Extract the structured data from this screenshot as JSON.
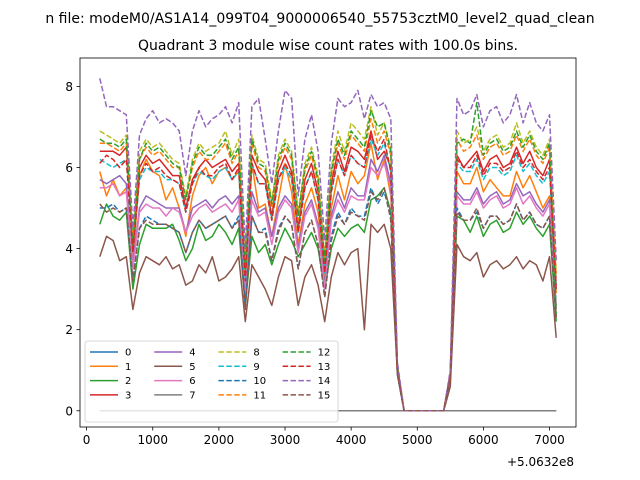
{
  "figure": {
    "suptitle": "n file: modeM0/AS1A14_099T04_9000006540_55753cztM0_level2_quad_clean"
  },
  "chart_data": {
    "type": "line",
    "title": "Quadrant 3 module wise count rates with 100.0s bins.",
    "xlabel": "",
    "ylabel": "",
    "offset_label": "+5.0632e8",
    "xlim": [
      -100,
      7400
    ],
    "ylim": [
      -0.4,
      8.7
    ],
    "xticks": [
      0,
      1000,
      2000,
      3000,
      4000,
      5000,
      6000,
      7000
    ],
    "yticks": [
      0,
      2,
      4,
      6,
      8
    ],
    "grid": false,
    "legend_position": "lower left",
    "legend_columns": 4,
    "x": [
      200,
      300,
      400,
      500,
      600,
      700,
      800,
      900,
      1000,
      1100,
      1200,
      1300,
      1400,
      1500,
      1600,
      1700,
      1800,
      1900,
      2000,
      2100,
      2200,
      2300,
      2400,
      2500,
      2600,
      2700,
      2800,
      2900,
      3000,
      3100,
      3200,
      3300,
      3400,
      3500,
      3600,
      3700,
      3800,
      3900,
      4000,
      4100,
      4200,
      4300,
      4400,
      4500,
      4600,
      4700,
      4800,
      4900,
      5000,
      5100,
      5200,
      5300,
      5400,
      5500,
      5600,
      5700,
      5800,
      5900,
      6000,
      6100,
      6200,
      6300,
      6400,
      6500,
      6600,
      6700,
      6800,
      6900,
      7000,
      7100
    ],
    "series": [
      {
        "name": "0",
        "style": "solid",
        "color": "#1f77b4",
        "values": [
          0,
          0,
          0,
          0,
          0,
          0,
          0,
          0,
          0,
          0,
          0,
          0,
          0,
          0,
          0,
          0,
          0,
          0,
          0,
          0,
          0,
          0,
          0,
          0,
          0,
          0,
          0,
          0,
          0,
          0,
          0,
          0,
          0,
          0,
          0,
          0,
          0,
          0,
          0,
          0,
          0,
          0,
          0,
          0,
          0,
          0,
          0,
          0,
          0,
          0,
          0,
          0,
          0,
          0,
          0,
          0,
          0,
          0,
          0,
          0,
          0,
          0,
          0,
          0,
          0,
          0,
          0,
          0,
          0,
          0
        ]
      },
      {
        "name": "1",
        "style": "solid",
        "color": "#ff7f0e",
        "values": [
          5.9,
          5.3,
          5.7,
          5.3,
          5.5,
          3.7,
          5.8,
          6.2,
          5.9,
          5.8,
          5.2,
          5.5,
          5.0,
          4.3,
          5.3,
          5.8,
          6.0,
          5.6,
          5.9,
          6.0,
          5.7,
          5.9,
          3.3,
          6.1,
          5.0,
          5.1,
          4.3,
          5.2,
          6.1,
          5.4,
          4.1,
          5.1,
          5.5,
          4.9,
          3.3,
          5.0,
          5.8,
          5.2,
          5.9,
          5.6,
          5.8,
          6.6,
          5.7,
          6.2,
          5.3,
          1.0,
          0,
          0,
          0,
          0,
          0,
          0,
          0,
          0.8,
          5.9,
          5.6,
          5.6,
          6.0,
          5.4,
          5.7,
          5.5,
          5.3,
          5.3,
          5.9,
          5.5,
          5.8,
          5.4,
          5.0,
          5.3,
          2.9
        ]
      },
      {
        "name": "2",
        "style": "solid",
        "color": "#2ca02c",
        "values": [
          4.6,
          5.1,
          4.8,
          4.7,
          4.9,
          3.0,
          4.1,
          4.6,
          4.5,
          4.5,
          4.5,
          4.6,
          4.2,
          3.7,
          4.0,
          4.6,
          4.2,
          4.3,
          4.6,
          4.4,
          4.1,
          4.5,
          2.6,
          4.3,
          3.9,
          4.1,
          3.6,
          4.1,
          4.5,
          4.2,
          3.8,
          4.1,
          4.4,
          4.0,
          3.0,
          4.0,
          4.5,
          4.3,
          4.5,
          4.6,
          4.4,
          5.2,
          5.3,
          5.5,
          4.9,
          0.9,
          0,
          0,
          0,
          0,
          0,
          0,
          0,
          0.8,
          4.8,
          4.7,
          4.4,
          4.8,
          4.3,
          4.6,
          4.7,
          4.4,
          4.5,
          4.9,
          4.6,
          4.8,
          4.5,
          4.3,
          4.6,
          2.2
        ]
      },
      {
        "name": "3",
        "style": "solid",
        "color": "#d62728",
        "values": [
          6.4,
          6.4,
          6.4,
          6.3,
          6.5,
          4.0,
          6.0,
          6.3,
          6.1,
          6.2,
          6.0,
          5.8,
          5.8,
          5.0,
          5.7,
          6.0,
          6.2,
          6.0,
          6.1,
          6.2,
          5.9,
          6.1,
          3.3,
          6.3,
          5.9,
          5.7,
          4.8,
          5.9,
          6.3,
          5.9,
          4.5,
          5.7,
          6.1,
          5.4,
          3.5,
          5.6,
          6.4,
          5.9,
          6.5,
          6.4,
          6.2,
          6.9,
          6.2,
          6.4,
          6.0,
          1.0,
          0,
          0,
          0,
          0,
          0,
          0,
          0,
          0.9,
          6.3,
          6.0,
          6.2,
          6.4,
          5.9,
          6.2,
          6.3,
          6.0,
          6.1,
          6.5,
          6.1,
          6.4,
          6.0,
          5.8,
          6.2,
          3.1
        ]
      },
      {
        "name": "4",
        "style": "solid",
        "color": "#9467bd",
        "values": [
          5.7,
          5.6,
          5.7,
          5.8,
          5.6,
          3.6,
          5.0,
          5.3,
          5.2,
          5.1,
          5.0,
          5.0,
          5.0,
          4.4,
          5.0,
          5.1,
          5.2,
          5.0,
          5.2,
          5.3,
          5.1,
          5.3,
          2.9,
          5.4,
          4.9,
          5.0,
          4.3,
          5.0,
          5.3,
          5.1,
          4.0,
          4.9,
          5.2,
          4.6,
          3.1,
          4.8,
          5.4,
          5.0,
          5.5,
          5.3,
          5.3,
          6.2,
          5.9,
          6.3,
          5.6,
          1.0,
          0,
          0,
          0,
          0,
          0,
          0,
          0,
          0.9,
          5.4,
          5.2,
          5.2,
          5.5,
          5.1,
          5.3,
          5.4,
          5.1,
          5.2,
          5.6,
          5.3,
          5.4,
          5.1,
          4.9,
          5.2,
          2.6
        ]
      },
      {
        "name": "5",
        "style": "solid",
        "color": "#8c564b",
        "values": [
          3.8,
          4.3,
          4.2,
          3.7,
          3.8,
          2.5,
          3.4,
          3.8,
          3.7,
          3.6,
          3.8,
          3.5,
          3.6,
          3.1,
          3.2,
          3.6,
          3.4,
          3.8,
          3.2,
          3.3,
          3.5,
          3.8,
          2.2,
          3.6,
          3.3,
          3.0,
          2.6,
          3.3,
          3.8,
          3.7,
          2.6,
          3.3,
          3.6,
          3.1,
          2.2,
          3.3,
          3.9,
          3.6,
          3.9,
          4.0,
          2.0,
          4.6,
          4.4,
          4.6,
          4.0,
          0.9,
          0,
          0,
          0,
          0,
          0,
          0,
          0,
          0.6,
          4.1,
          3.8,
          3.7,
          3.9,
          3.3,
          3.6,
          3.7,
          3.5,
          3.6,
          3.8,
          3.5,
          3.7,
          3.6,
          3.2,
          3.8,
          1.8
        ]
      },
      {
        "name": "6",
        "style": "solid",
        "color": "#e377c2",
        "values": [
          5.5,
          5.5,
          5.6,
          5.3,
          5.4,
          3.5,
          4.9,
          5.1,
          5.0,
          5.0,
          4.8,
          5.0,
          4.9,
          4.4,
          4.8,
          5.0,
          5.1,
          4.9,
          5.0,
          5.1,
          4.9,
          5.2,
          2.9,
          5.2,
          4.8,
          4.9,
          4.1,
          4.9,
          5.2,
          5.0,
          3.9,
          4.8,
          5.1,
          4.5,
          3.0,
          4.7,
          5.2,
          4.9,
          5.3,
          5.2,
          5.2,
          6.0,
          5.8,
          6.1,
          5.5,
          1.0,
          0,
          0,
          0,
          0,
          0,
          0,
          0,
          0.9,
          5.3,
          5.1,
          5.1,
          5.4,
          5.0,
          5.2,
          5.3,
          5.0,
          5.1,
          5.5,
          5.1,
          5.3,
          5.0,
          4.8,
          5.1,
          2.5
        ]
      },
      {
        "name": "7",
        "style": "solid",
        "color": "#7f7f7f",
        "values": [
          0,
          0,
          0,
          0,
          0,
          0,
          0,
          0,
          0,
          0,
          0,
          0,
          0,
          0,
          0,
          0,
          0,
          0,
          0,
          0,
          0,
          0,
          0,
          0,
          0,
          0,
          0,
          0,
          0,
          0,
          0,
          0,
          0,
          0,
          0,
          0,
          0,
          0,
          0,
          0,
          0,
          0,
          0,
          0,
          0,
          0,
          0,
          0,
          0,
          0,
          0,
          0,
          0,
          0,
          0,
          0,
          0,
          0,
          0,
          0,
          0,
          0,
          0,
          0,
          0,
          0,
          0,
          0,
          0,
          0
        ]
      },
      {
        "name": "8",
        "style": "dashed",
        "color": "#bcbd22",
        "values": [
          6.9,
          6.8,
          6.7,
          6.6,
          6.8,
          4.2,
          6.4,
          6.7,
          6.5,
          6.6,
          6.4,
          6.2,
          6.1,
          5.3,
          6.2,
          6.6,
          6.4,
          6.5,
          6.6,
          6.9,
          6.3,
          6.7,
          3.6,
          6.8,
          6.2,
          6.1,
          5.2,
          6.3,
          6.7,
          6.4,
          4.9,
          6.1,
          6.5,
          5.8,
          3.8,
          6.0,
          6.9,
          6.4,
          7.1,
          6.9,
          6.7,
          7.5,
          6.8,
          7.1,
          6.5,
          1.1,
          0,
          0,
          0,
          0,
          0,
          0,
          0,
          0.9,
          6.9,
          6.6,
          6.7,
          7.0,
          6.4,
          6.7,
          6.8,
          6.5,
          6.6,
          7.1,
          6.6,
          6.9,
          6.5,
          6.3,
          6.7,
          3.4
        ]
      },
      {
        "name": "9",
        "style": "dashed",
        "color": "#17becf",
        "values": [
          6.2,
          6.1,
          6.0,
          6.1,
          6.2,
          3.9,
          5.7,
          6.0,
          5.9,
          5.9,
          5.7,
          5.7,
          5.6,
          4.9,
          5.6,
          5.9,
          5.8,
          5.7,
          5.9,
          6.0,
          5.7,
          5.9,
          3.2,
          6.1,
          5.6,
          5.6,
          4.7,
          5.7,
          6.0,
          5.7,
          4.4,
          5.5,
          5.9,
          5.2,
          3.4,
          5.4,
          6.2,
          5.8,
          6.3,
          6.1,
          6.0,
          6.7,
          6.3,
          6.6,
          5.9,
          1.0,
          0,
          0,
          0,
          0,
          0,
          0,
          0,
          0.9,
          6.1,
          5.9,
          5.9,
          6.2,
          5.7,
          6.0,
          6.0,
          5.8,
          5.9,
          6.3,
          5.9,
          6.1,
          5.8,
          5.6,
          5.9,
          3.0
        ]
      },
      {
        "name": "10",
        "style": "dashed",
        "color": "#1f77b4",
        "values": [
          5.0,
          5.0,
          5.1,
          4.9,
          5.0,
          3.2,
          4.5,
          4.8,
          4.7,
          4.6,
          4.6,
          4.5,
          4.4,
          3.9,
          4.4,
          4.7,
          4.5,
          4.6,
          4.7,
          4.8,
          4.5,
          4.8,
          2.6,
          4.8,
          4.4,
          4.5,
          3.7,
          4.5,
          4.8,
          4.6,
          3.5,
          4.4,
          4.7,
          4.1,
          2.8,
          4.3,
          4.9,
          4.6,
          5.0,
          4.8,
          4.8,
          5.5,
          5.1,
          5.4,
          4.8,
          0.9,
          0,
          0,
          0,
          0,
          0,
          0,
          0,
          0.8,
          5.0,
          4.7,
          4.7,
          4.9,
          4.5,
          4.8,
          4.8,
          4.6,
          4.7,
          5.1,
          4.7,
          4.9,
          4.6,
          4.5,
          4.8,
          2.3
        ]
      },
      {
        "name": "11",
        "style": "dashed",
        "color": "#ff7f0e",
        "values": [
          6.6,
          6.6,
          6.5,
          6.4,
          6.6,
          4.1,
          6.2,
          6.5,
          6.3,
          6.4,
          6.2,
          6.0,
          6.0,
          5.2,
          6.0,
          6.4,
          6.2,
          6.2,
          6.4,
          6.6,
          6.1,
          6.4,
          3.4,
          6.6,
          6.0,
          5.9,
          5.0,
          6.1,
          6.5,
          6.2,
          4.7,
          5.9,
          6.3,
          5.6,
          3.7,
          5.8,
          6.6,
          6.2,
          6.8,
          6.6,
          6.4,
          7.2,
          6.6,
          6.9,
          6.3,
          1.1,
          0,
          0,
          0,
          0,
          0,
          0,
          0,
          0.9,
          6.7,
          6.4,
          6.5,
          6.8,
          6.2,
          6.5,
          6.6,
          6.3,
          6.4,
          6.8,
          6.4,
          6.7,
          6.3,
          6.1,
          6.5,
          3.3
        ]
      },
      {
        "name": "12",
        "style": "dashed",
        "color": "#2ca02c",
        "values": [
          6.7,
          6.6,
          6.6,
          6.5,
          6.7,
          4.1,
          6.2,
          6.6,
          6.4,
          6.5,
          6.3,
          6.1,
          6.0,
          5.2,
          6.1,
          6.5,
          6.3,
          6.3,
          6.5,
          6.7,
          6.2,
          6.5,
          3.5,
          6.7,
          6.1,
          6.0,
          5.1,
          6.2,
          6.6,
          6.3,
          4.8,
          6.0,
          6.4,
          5.7,
          3.7,
          5.9,
          6.7,
          6.3,
          6.9,
          6.7,
          6.5,
          7.4,
          7.0,
          7.1,
          6.4,
          1.1,
          0,
          0,
          0,
          0,
          0,
          0,
          0,
          0.9,
          6.6,
          6.7,
          6.6,
          7.6,
          6.3,
          6.6,
          6.7,
          6.4,
          6.5,
          6.9,
          6.5,
          6.8,
          6.4,
          6.2,
          6.6,
          2.4
        ]
      },
      {
        "name": "13",
        "style": "dashed",
        "color": "#d62728",
        "values": [
          6.1,
          6.3,
          6.2,
          6.0,
          6.2,
          3.9,
          5.8,
          6.1,
          5.9,
          6.0,
          5.8,
          5.7,
          5.6,
          4.9,
          5.6,
          6.0,
          5.8,
          5.8,
          6.0,
          6.1,
          5.7,
          6.0,
          3.2,
          6.1,
          5.6,
          5.6,
          4.7,
          5.7,
          6.1,
          5.8,
          4.4,
          5.5,
          5.9,
          5.2,
          3.4,
          5.4,
          6.2,
          5.8,
          6.3,
          6.1,
          6.0,
          6.8,
          6.4,
          6.7,
          5.9,
          1.0,
          0,
          0,
          0,
          0,
          0,
          0,
          0,
          0.9,
          6.2,
          6.0,
          6.0,
          6.3,
          5.8,
          6.1,
          6.1,
          5.9,
          6.0,
          6.4,
          6.0,
          6.2,
          5.9,
          5.7,
          6.0,
          3.0
        ]
      },
      {
        "name": "14",
        "style": "dashed",
        "color": "#9467bd",
        "values": [
          8.2,
          7.5,
          7.5,
          7.4,
          7.3,
          4.5,
          6.8,
          7.2,
          7.4,
          7.1,
          7.2,
          7.1,
          6.9,
          5.8,
          6.9,
          7.4,
          7.0,
          7.2,
          7.3,
          7.5,
          7.1,
          7.6,
          4.0,
          7.5,
          7.7,
          6.7,
          5.6,
          6.9,
          7.9,
          7.7,
          5.3,
          6.7,
          7.3,
          6.4,
          4.2,
          6.6,
          7.7,
          7.5,
          7.6,
          7.9,
          7.2,
          7.8,
          7.5,
          7.6,
          7.2,
          1.2,
          0,
          0,
          0,
          0,
          0,
          0,
          0,
          1.0,
          7.7,
          7.3,
          7.4,
          7.8,
          7.0,
          7.4,
          7.5,
          7.1,
          7.3,
          7.8,
          7.1,
          7.6,
          7.1,
          6.9,
          7.3,
          3.7
        ]
      },
      {
        "name": "15",
        "style": "dashed",
        "color": "#8c564b",
        "values": [
          5.1,
          4.9,
          5.0,
          4.9,
          5.0,
          3.2,
          4.5,
          4.7,
          4.6,
          4.6,
          4.6,
          4.5,
          4.4,
          3.9,
          4.4,
          4.7,
          4.5,
          4.6,
          4.7,
          4.8,
          4.5,
          4.7,
          2.5,
          4.8,
          4.4,
          4.4,
          3.7,
          4.4,
          4.8,
          4.6,
          3.5,
          4.4,
          4.7,
          4.1,
          2.8,
          4.2,
          4.8,
          4.6,
          4.9,
          4.8,
          4.7,
          5.4,
          5.2,
          5.5,
          4.7,
          0.9,
          0,
          0,
          0,
          0,
          0,
          0,
          0,
          0.8,
          4.9,
          4.7,
          4.7,
          5.0,
          4.5,
          4.8,
          4.8,
          4.6,
          4.7,
          5.1,
          4.7,
          4.9,
          4.6,
          4.5,
          4.8,
          2.3
        ]
      }
    ]
  }
}
